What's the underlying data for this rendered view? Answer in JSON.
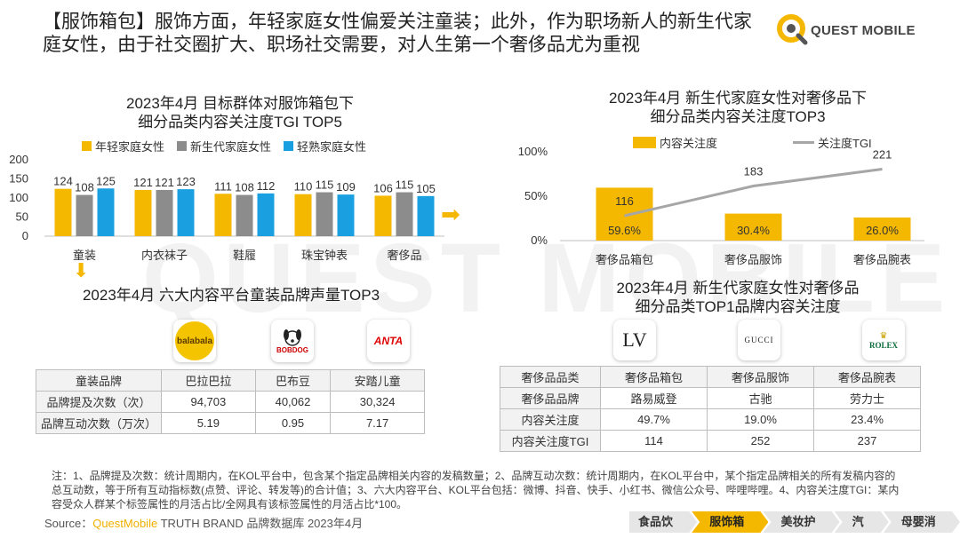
{
  "headline": "【服饰箱包】服饰方面，年轻家庭女性偏爱关注童装；此外，作为职场新人的新生代家庭女性，由于社交圈扩大、职场社交需要，对人生第一个奢侈品尤为重视",
  "logo": {
    "text": "QUEST MOBILE"
  },
  "watermark": "QUEST MOBILE",
  "colors": {
    "yellow": "#f5b800",
    "gray": "#8c8c8c",
    "blue": "#1aa0e0",
    "line": "#a6a6a6",
    "accent": "#f5b800"
  },
  "chart_data": [
    {
      "type": "bar",
      "title": "2023年4月 目标群体对服饰箱包下细分品类内容关注度TGI TOP5",
      "title_lines": [
        "2023年4月 目标群体对服饰箱包下",
        "细分品类内容关注度TGI TOP5"
      ],
      "categories": [
        "童装",
        "内衣袜子",
        "鞋履",
        "珠宝钟表",
        "奢侈品"
      ],
      "series": [
        {
          "name": "年轻家庭女性",
          "values": [
            124,
            121,
            111,
            110,
            106
          ],
          "color": "#f5b800"
        },
        {
          "name": "新生代家庭女性",
          "values": [
            108,
            121,
            108,
            115,
            115
          ],
          "color": "#8c8c8c"
        },
        {
          "name": "轻熟家庭女性",
          "values": [
            125,
            123,
            112,
            109,
            105
          ],
          "color": "#1aa0e0"
        }
      ],
      "yticks": [
        "0",
        "50",
        "100",
        "150",
        "200"
      ],
      "ylim": [
        0,
        200
      ],
      "legend": "top"
    },
    {
      "type": "bar",
      "title": "2023年4月 新生代家庭女性对奢侈品下细分品类内容关注度TOP3",
      "title_lines": [
        "2023年4月 新生代家庭女性对奢侈品下",
        "细分品类内容关注度TOP3"
      ],
      "categories": [
        "奢侈品箱包",
        "奢侈品服饰",
        "奢侈品腕表"
      ],
      "series": [
        {
          "name": "内容关注度",
          "values": [
            59.6,
            30.4,
            26.0
          ],
          "labels": [
            "59.6%",
            "30.4%",
            "26.0%"
          ],
          "kind": "bar",
          "axis": "left",
          "color": "#f5b800"
        },
        {
          "name": "关注度TGI",
          "values": [
            116,
            183,
            221
          ],
          "labels": [
            "116",
            "183",
            "221"
          ],
          "kind": "line",
          "axis": "right",
          "color": "#a6a6a6"
        }
      ],
      "yticks": [
        "0%",
        "50%",
        "100%"
      ],
      "ylim": [
        0,
        100
      ],
      "legend": "top"
    }
  ],
  "arrows": {
    "right": "➡",
    "down": "⬇"
  },
  "brand_table": {
    "title": "2023年4月 六大内容平台童装品牌声量TOP3",
    "logos": [
      "balabala",
      "BOBDOG",
      "ANTA"
    ],
    "header": [
      "童装品牌",
      "巴拉巴拉",
      "巴布豆",
      "安踏儿童"
    ],
    "rows": [
      [
        "品牌提及次数（次）",
        "94,703",
        "40,062",
        "30,324"
      ],
      [
        "品牌互动次数（万次）",
        "5.19",
        "0.95",
        "7.17"
      ]
    ]
  },
  "lux_table": {
    "title_lines": [
      "2023年4月 新生代家庭女性对奢侈品",
      "细分品类TOP1品牌内容关注度"
    ],
    "logos": [
      "LV",
      "GUCCI",
      "ROLEX"
    ],
    "header": [
      "奢侈品品类",
      "奢侈品箱包",
      "奢侈品服饰",
      "奢侈品腕表"
    ],
    "rows": [
      [
        "奢侈品品牌",
        "路易威登",
        "古驰",
        "劳力士"
      ],
      [
        "内容关注度",
        "49.7%",
        "19.0%",
        "23.4%"
      ],
      [
        "内容关注度TGI",
        "114",
        "252",
        "237"
      ]
    ]
  },
  "note": "注：1、品牌提及次数：统计周期内，在KOL平台中，包含某个指定品牌相关内容的发稿数量；2、品牌互动次数：统计周期内，在KOL平台中，某个指定品牌相关的所有发稿内容的总互动数，等于所有互动指标数(点赞、评论、转发等)的合计值；3、六大内容平台、KOL平台包括：微博、抖音、快手、小红书、微信公众号、哔哩哔哩。4、内容关注度TGI：某内容受众人群某个标签属性的月活占比/全网具有该标签属性的月活占比*100。",
  "source": {
    "prefix": "Source：",
    "brand": "QuestMobile",
    "rest": " TRUTH BRAND 品牌数据库 2023年4月"
  },
  "tabs": [
    {
      "label": "食品饮品",
      "active": false
    },
    {
      "label": "服饰箱包",
      "active": true
    },
    {
      "label": "美妆护肤",
      "active": false
    },
    {
      "label": "汽车",
      "active": false
    },
    {
      "label": "母婴消费",
      "active": false
    }
  ]
}
